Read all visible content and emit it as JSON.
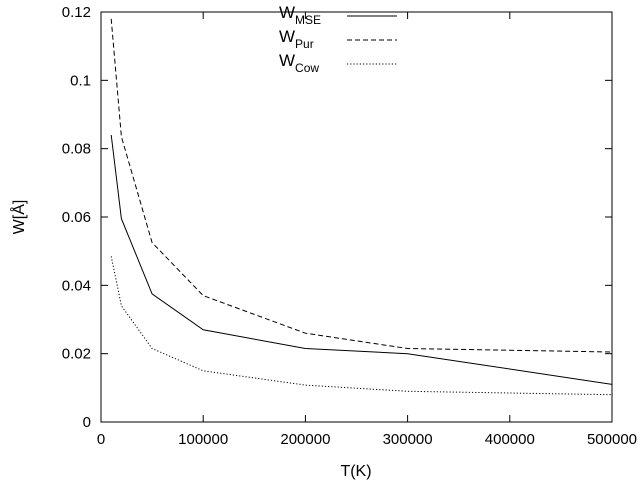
{
  "chart_data": {
    "type": "line",
    "xlabel": "T(K)",
    "ylabel": "W[Å]",
    "xlim": [
      0,
      500000
    ],
    "ylim": [
      0,
      0.12
    ],
    "xticks": [
      0,
      100000,
      200000,
      300000,
      400000,
      500000
    ],
    "xtick_labels": [
      "0",
      "100000",
      "200000",
      "300000",
      "400000",
      "500000"
    ],
    "yticks": [
      0,
      0.02,
      0.04,
      0.06,
      0.08,
      0.1,
      0.12
    ],
    "ytick_labels": [
      "0",
      "0.02",
      "0.04",
      "0.06",
      "0.08",
      "0.1",
      "0.12"
    ],
    "grid": false,
    "legend": "top-center",
    "series": [
      {
        "name": "MSE",
        "legend_prefix": "W",
        "legend_sub": "MSE",
        "style": "solid",
        "x": [
          10000,
          20000,
          50000,
          100000,
          200000,
          300000,
          500000
        ],
        "y": [
          0.084,
          0.0595,
          0.0375,
          0.027,
          0.0215,
          0.02,
          0.011
        ]
      },
      {
        "name": "Pur",
        "legend_prefix": "W",
        "legend_sub": "Pur",
        "style": "dashed",
        "x": [
          10000,
          20000,
          50000,
          100000,
          200000,
          300000,
          500000
        ],
        "y": [
          0.118,
          0.0835,
          0.0525,
          0.037,
          0.026,
          0.0215,
          0.0205
        ]
      },
      {
        "name": "Cow",
        "legend_prefix": "W",
        "legend_sub": "Cow",
        "style": "dotted",
        "x": [
          10000,
          20000,
          50000,
          100000,
          200000,
          300000,
          500000
        ],
        "y": [
          0.0485,
          0.034,
          0.0215,
          0.015,
          0.0108,
          0.009,
          0.008
        ]
      }
    ]
  }
}
